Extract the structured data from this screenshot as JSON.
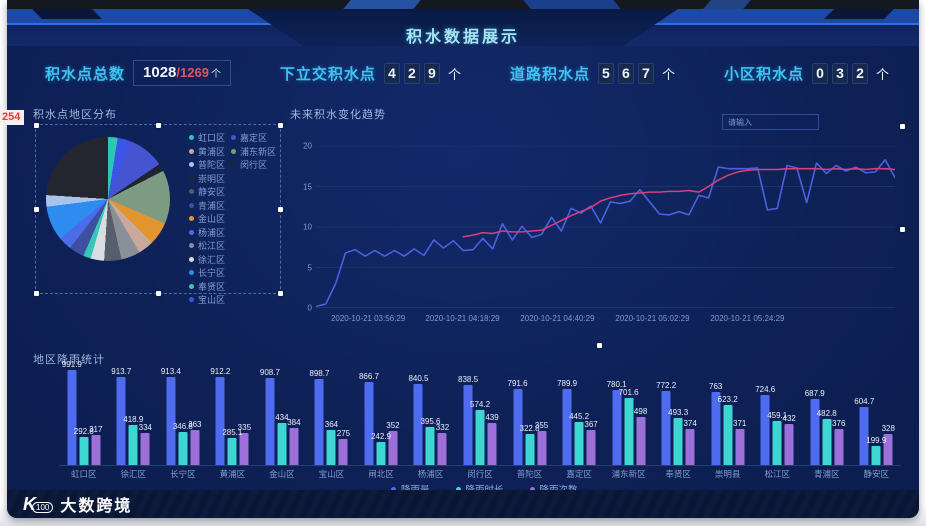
{
  "page": {
    "title": "积水数据展示",
    "edge_note": "254",
    "logo": {
      "mark": "K",
      "sup": "100",
      "text": "大数跨境"
    }
  },
  "stats": [
    {
      "label": "积水点总数",
      "value": "1028",
      "total": "/1269",
      "unit": "个"
    },
    {
      "label": "下立交积水点",
      "digits": [
        "4",
        "2",
        "9"
      ],
      "unit": "个"
    },
    {
      "label": "道路积水点",
      "digits": [
        "5",
        "6",
        "7"
      ],
      "unit": "个"
    },
    {
      "label": "小区积水点",
      "digits": [
        "0",
        "3",
        "2"
      ],
      "unit": "个"
    }
  ],
  "pie_panel": {
    "title": "积水点地区分布"
  },
  "line_panel": {
    "title": "未来积水变化趋势",
    "input_placeholder": "请输入"
  },
  "bar_panel": {
    "title": "地区降雨统计"
  },
  "chart_data": [
    {
      "type": "pie",
      "title": "积水点地区分布",
      "segments": [
        {
          "label": "虹口区",
          "color": "#2ec7b4",
          "value": 2.5
        },
        {
          "label": "宝山区",
          "color": "#3b55e6",
          "value": 3.5
        },
        {
          "label": "嘉定区",
          "color": "#4554d0",
          "value": 9.5
        },
        {
          "label": "闵行区",
          "color": "#1f2430",
          "value": 2
        },
        {
          "label": "浦东新区",
          "color": "#7d9b82",
          "value": 14
        },
        {
          "label": "金山区",
          "color": "#e2952e",
          "value": 6
        },
        {
          "label": "黄浦区",
          "color": "#c9a99a",
          "value": 4
        },
        {
          "label": "松江区",
          "color": "#8a9098",
          "value": 5
        },
        {
          "label": "静安区",
          "color": "#565e6a",
          "value": 4.5
        },
        {
          "label": "徐汇区",
          "color": "#d9dde2",
          "value": 3.5
        },
        {
          "label": "奉贤区",
          "color": "#35c8b8",
          "value": 2
        },
        {
          "label": "青浦区",
          "color": "#3d4f9e",
          "value": 4
        },
        {
          "label": "杨浦区",
          "color": "#4a6ce8",
          "value": 3.5
        },
        {
          "label": "长宁区",
          "color": "#2e8cf0",
          "value": 9
        },
        {
          "label": "普陀区",
          "color": "#a9c3ea",
          "value": 3
        },
        {
          "label": "崇明区",
          "color": "#23262f",
          "value": 24
        }
      ],
      "legend_columns": [
        [
          "虹口区",
          "黄浦区",
          "普陀区",
          "崇明区",
          "静安区",
          "青浦区",
          "金山区",
          "杨浦区",
          "松江区",
          "徐汇区",
          "长宁区",
          "奉贤区",
          "宝山区"
        ],
        [
          "嘉定区",
          "浦东新区",
          "闵行区"
        ]
      ]
    },
    {
      "type": "line",
      "title": "未来积水变化趋势",
      "ylim": [
        0,
        20
      ],
      "yticks": [
        0,
        5,
        10,
        15,
        20
      ],
      "grid": true,
      "x_tick_labels": [
        "2020-10-21 03:56:29",
        "2020-10-21 04:18:29",
        "2020-10-21 04:40:29",
        "2020-10-21 05:02:29",
        "2020-10-21 05:24:29"
      ],
      "x_tick_positions": [
        0.09,
        0.253,
        0.417,
        0.581,
        0.745
      ],
      "series": [
        {
          "name": "积水值",
          "color": "#4a63e0",
          "values": [
            0.2,
            0.5,
            3,
            6.8,
            7.2,
            6.4,
            7.1,
            6.4,
            7.1,
            6.4,
            7.3,
            6.5,
            8.4,
            7.4,
            8.3,
            7.1,
            7.2,
            8.6,
            7.3,
            10.4,
            8.4,
            10.1,
            8.7,
            9.1,
            11.2,
            9.5,
            12.3,
            11.7,
            12.6,
            10.5,
            13.1,
            12.9,
            13.2,
            14.6,
            13.1,
            11.6,
            11.5,
            11.9,
            11.5,
            13.9,
            13.6,
            17.4,
            17.2,
            17.2,
            17.2,
            17.3,
            12.1,
            12.3,
            17.6,
            17.3,
            13.0,
            17.9,
            16.6,
            17.6,
            16.9,
            17.4,
            16.7,
            16.8,
            18.3,
            16.1
          ]
        },
        {
          "name": "趋势",
          "color": "#d84078",
          "values": [
            null,
            null,
            null,
            null,
            null,
            null,
            null,
            null,
            null,
            null,
            null,
            null,
            null,
            null,
            null,
            8.8,
            9.0,
            9.3,
            9.2,
            9.5,
            9.4,
            9.4,
            9.5,
            9.6,
            10.2,
            10.8,
            11.4,
            11.9,
            12.4,
            13.2,
            13.6,
            13.9,
            14.1,
            14.2,
            14.3,
            14.3,
            14.4,
            14.4,
            14.5,
            14.3,
            15.0,
            15.8,
            16.4,
            16.8,
            17.0,
            17.1,
            17.1,
            17.1,
            17.2,
            17.2,
            17.2,
            17.2,
            17.1,
            17.2,
            17.1,
            17.2,
            17.1,
            17.2,
            17.2,
            17.1
          ]
        }
      ]
    },
    {
      "type": "bar",
      "title": "地区降雨统计",
      "ylim": [
        0,
        1000
      ],
      "legend_position": "bottom-right",
      "categories": [
        "虹口区",
        "徐汇区",
        "长宁区",
        "黄浦区",
        "金山区",
        "宝山区",
        "闸北区",
        "杨浦区",
        "闵行区",
        "普陀区",
        "嘉定区",
        "浦东新区",
        "奉贤区",
        "崇明县",
        "松江区",
        "青浦区",
        "静安区"
      ],
      "series": [
        {
          "name": "降雨量",
          "color": "#4f6bef",
          "values": [
            "991.9",
            "913.7",
            "913.4",
            "912.2",
            "908.7",
            "898.7",
            "866.7",
            "840.5",
            "838.5",
            "791.6",
            "789.9",
            "780.1",
            "772.2",
            "763",
            "724.6",
            "687.9",
            "604.7"
          ]
        },
        {
          "name": "降雨时长",
          "color": "#3ed6d2",
          "values": [
            "292.8",
            "418.9",
            "346.8",
            "285.1",
            "434",
            "364",
            "242.9",
            "395.6",
            "574.2",
            "322.8",
            "445.2",
            "701.6",
            "493.3",
            "623.2",
            "459.1",
            "482.8",
            "199.9"
          ]
        },
        {
          "name": "降雨次数",
          "color": "#9d6fd8",
          "values": [
            "317",
            "334",
            "363",
            "335",
            "384",
            "275",
            "352",
            "332",
            "439",
            "355",
            "367",
            "498",
            "374",
            "371",
            "432",
            "376",
            "328"
          ]
        }
      ]
    }
  ]
}
